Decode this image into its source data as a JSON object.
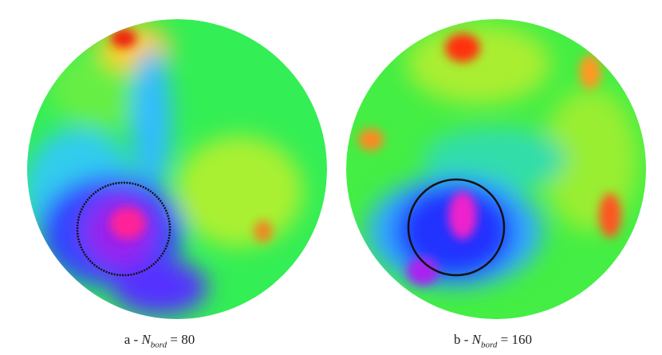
{
  "panels": [
    {
      "label": "a -",
      "symbol": "N",
      "subscript": "bord",
      "equation": "= 80"
    },
    {
      "label": "b -",
      "symbol": "N",
      "subscript": "bord",
      "equation": "= 160"
    }
  ]
}
